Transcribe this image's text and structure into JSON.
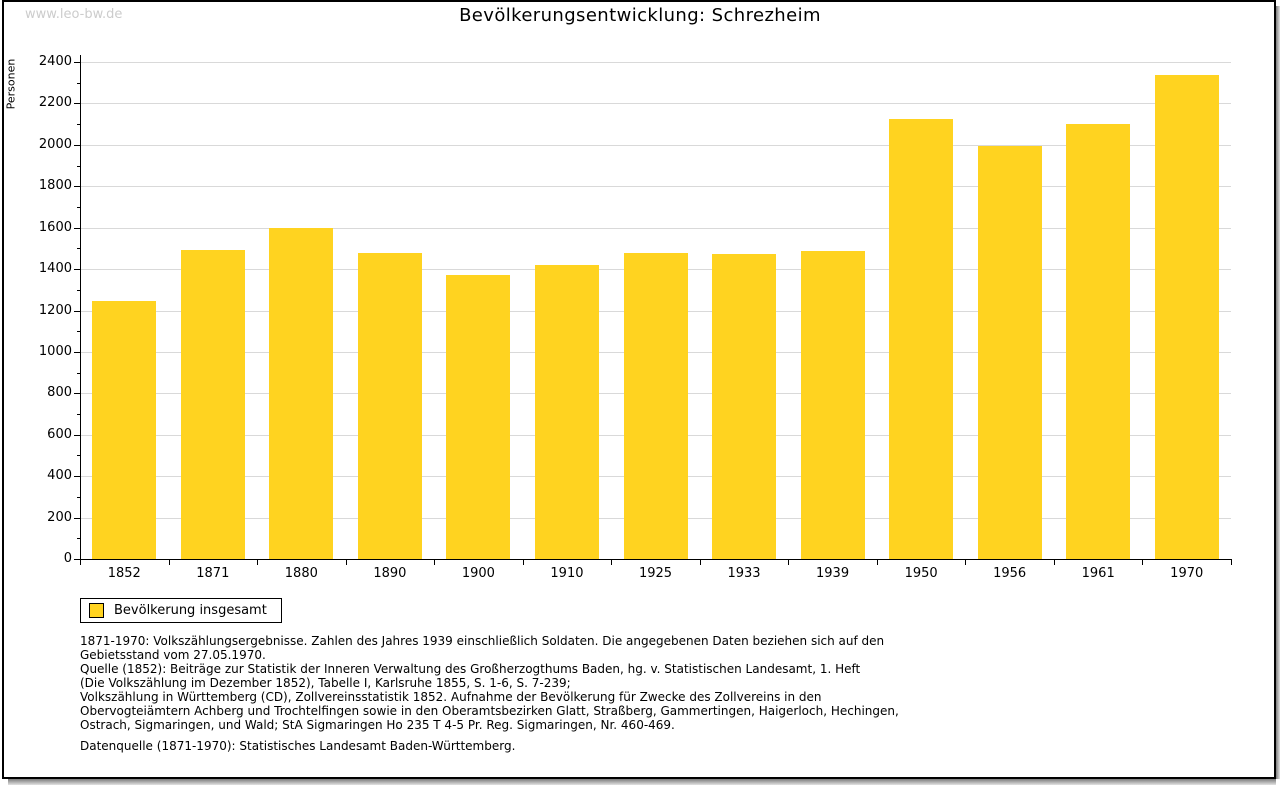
{
  "watermark": "www.leo-bw.de",
  "title": "Bevölkerungsentwicklung: Schrezheim",
  "chart_data": {
    "type": "bar",
    "title": "Bevölkerungsentwicklung: Schrezheim",
    "xlabel": "",
    "ylabel": "Personen",
    "categories": [
      "1852",
      "1871",
      "1880",
      "1890",
      "1900",
      "1910",
      "1925",
      "1933",
      "1939",
      "1950",
      "1956",
      "1961",
      "1970"
    ],
    "values": [
      1244,
      1494,
      1600,
      1478,
      1370,
      1422,
      1478,
      1471,
      1485,
      2123,
      1994,
      2099,
      2336
    ],
    "series": [
      {
        "name": "Bevölkerung insgesamt",
        "values": [
          1244,
          1494,
          1600,
          1478,
          1370,
          1422,
          1478,
          1471,
          1485,
          2123,
          1994,
          2099,
          2336
        ]
      }
    ],
    "ylim": [
      0,
      2400
    ],
    "y_ticks": [
      0,
      200,
      400,
      600,
      800,
      1000,
      1200,
      1400,
      1600,
      1800,
      2000,
      2200,
      2400
    ],
    "y_minor_tick_step": 100,
    "grid": true,
    "legend_position": "bottom-left",
    "bar_color": "#FFD320"
  },
  "legend": {
    "label": "Bevölkerung insgesamt",
    "swatch_color": "#FFD320"
  },
  "footnotes": {
    "lines": [
      "1871-1970: Volkszählungsergebnisse. Zahlen des Jahres 1939 einschließlich Soldaten. Die angegebenen Daten beziehen sich auf den",
      "Gebietsstand vom 27.05.1970.",
      "Quelle (1852): Beiträge zur Statistik der Inneren Verwaltung des Großherzogthums Baden, hg. v. Statistischen Landesamt, 1. Heft",
      "(Die Volkszählung im Dezember 1852), Tabelle I, Karlsruhe 1855, S. 1-6, S. 7-239;",
      "Volkszählung in Württemberg (CD), Zollvereinsstatistik 1852. Aufnahme der Bevölkerung für Zwecke des Zollvereins in den",
      "Obervogteiämtern Achberg und Trochtelfingen sowie in den Oberamtsbezirken Glatt, Straßberg, Gammertingen, Haigerloch, Hechingen,",
      "Ostrach, Sigmaringen, und Wald; StA Sigmaringen Ho 235 T 4-5 Pr. Reg. Sigmaringen, Nr. 460-469."
    ],
    "datasource": "Datenquelle (1871-1970): Statistisches Landesamt Baden-Württemberg."
  },
  "colors": {
    "bar": "#FFD320",
    "gridline": "#d9d9d9",
    "axis": "#000000",
    "text": "#000000",
    "watermark": "#cccccc",
    "frame_border": "#000000",
    "shadow": "#7b7b7b"
  }
}
